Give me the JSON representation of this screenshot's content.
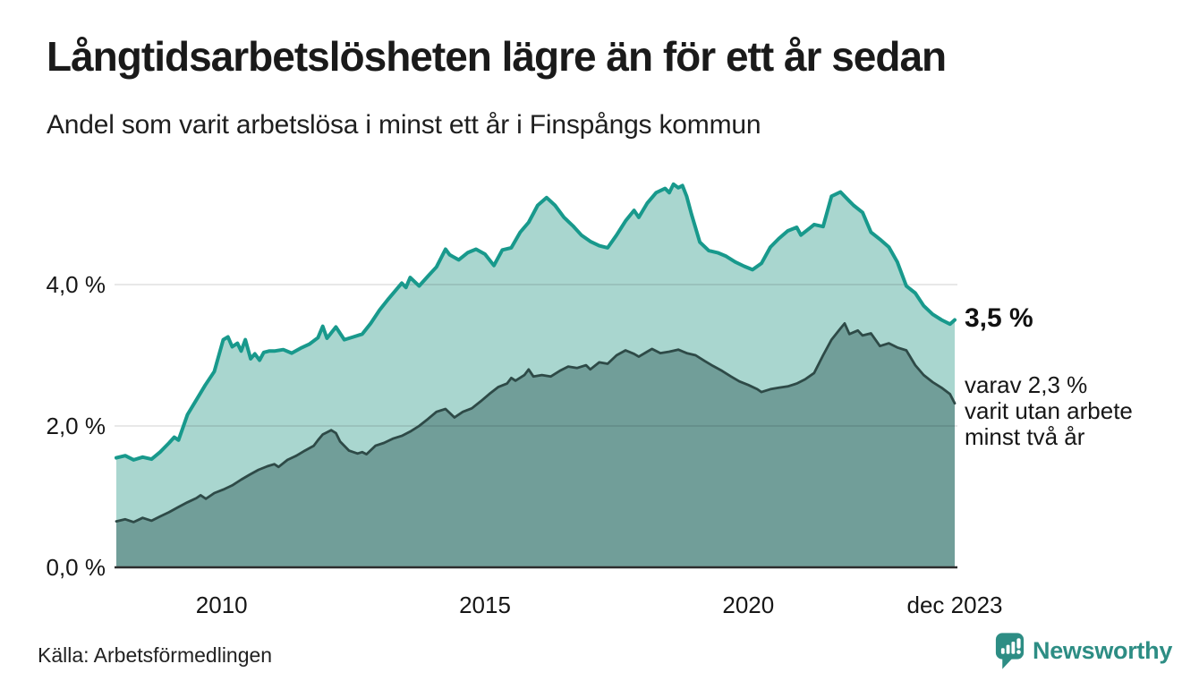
{
  "header": {
    "title": "Långtidsarbetslösheten lägre än för ett år sedan",
    "subtitle": "Andel som varit arbetslösa i minst ett år i Finspångs kommun"
  },
  "annotations": {
    "total_label": "3,5 %",
    "breakdown_line1": "varav 2,3 %",
    "breakdown_line2": "varit utan arbete",
    "breakdown_line3": "minst två år"
  },
  "footer": {
    "source": "Källa: Arbetsförmedlingen",
    "logo_text": "Newsworthy"
  },
  "colors": {
    "accent_teal": "#18998c",
    "light_fill": "#a9d6cf",
    "dark_line": "#2e4a47",
    "dark_fill": "#719e99",
    "gridline": "rgba(0,0,0,0.12)",
    "axis": "#2d2d2d",
    "logo_teal": "#2d8d84",
    "text": "#1a1a1a"
  },
  "chart_data": {
    "type": "area",
    "title": "Långtidsarbetslösheten lägre än för ett år sedan",
    "subtitle": "Andel som varit arbetslösa i minst ett år i Finspångs kommun",
    "xlabel": "",
    "ylabel": "",
    "xlim": [
      2008.0,
      2023.92
    ],
    "ylim": [
      0,
      5.5
    ],
    "grid": "horizontal",
    "legend": "none",
    "y_ticks": [
      {
        "value": 4,
        "label": "4,0 %"
      },
      {
        "value": 2,
        "label": "2,0 %"
      },
      {
        "value": 0,
        "label": "0,0 %"
      }
    ],
    "x_ticks": [
      {
        "value": 2010,
        "label": "2010"
      },
      {
        "value": 2015,
        "label": "2015"
      },
      {
        "value": 2020,
        "label": "2020"
      },
      {
        "value": 2023.92,
        "label": "dec 2023"
      }
    ],
    "series": [
      {
        "id": "at-least-one-year",
        "name": "Andel arbetslösa minst ett år",
        "end_value": 3.5,
        "end_label": "3,5 %",
        "line_color": "#18998c",
        "fill_color": "#a9d6cf",
        "points": [
          [
            2008.0,
            1.55
          ],
          [
            2008.17,
            1.58
          ],
          [
            2008.33,
            1.52
          ],
          [
            2008.5,
            1.56
          ],
          [
            2008.67,
            1.53
          ],
          [
            2008.83,
            1.63
          ],
          [
            2009.0,
            1.76
          ],
          [
            2009.1,
            1.84
          ],
          [
            2009.18,
            1.8
          ],
          [
            2009.35,
            2.16
          ],
          [
            2009.52,
            2.37
          ],
          [
            2009.69,
            2.58
          ],
          [
            2009.86,
            2.77
          ],
          [
            2010.03,
            3.22
          ],
          [
            2010.12,
            3.26
          ],
          [
            2010.2,
            3.12
          ],
          [
            2010.3,
            3.17
          ],
          [
            2010.37,
            3.06
          ],
          [
            2010.45,
            3.22
          ],
          [
            2010.55,
            2.95
          ],
          [
            2010.63,
            3.02
          ],
          [
            2010.72,
            2.93
          ],
          [
            2010.8,
            3.04
          ],
          [
            2010.9,
            3.06
          ],
          [
            2011.0,
            3.06
          ],
          [
            2011.17,
            3.08
          ],
          [
            2011.33,
            3.03
          ],
          [
            2011.5,
            3.1
          ],
          [
            2011.67,
            3.16
          ],
          [
            2011.83,
            3.25
          ],
          [
            2011.92,
            3.41
          ],
          [
            2012.0,
            3.24
          ],
          [
            2012.17,
            3.4
          ],
          [
            2012.33,
            3.22
          ],
          [
            2012.5,
            3.26
          ],
          [
            2012.67,
            3.3
          ],
          [
            2012.83,
            3.45
          ],
          [
            2013.0,
            3.64
          ],
          [
            2013.17,
            3.8
          ],
          [
            2013.33,
            3.94
          ],
          [
            2013.42,
            4.02
          ],
          [
            2013.5,
            3.96
          ],
          [
            2013.58,
            4.1
          ],
          [
            2013.75,
            3.98
          ],
          [
            2013.92,
            4.12
          ],
          [
            2014.08,
            4.25
          ],
          [
            2014.25,
            4.5
          ],
          [
            2014.33,
            4.42
          ],
          [
            2014.5,
            4.35
          ],
          [
            2014.67,
            4.45
          ],
          [
            2014.83,
            4.5
          ],
          [
            2015.0,
            4.43
          ],
          [
            2015.17,
            4.27
          ],
          [
            2015.33,
            4.49
          ],
          [
            2015.5,
            4.52
          ],
          [
            2015.67,
            4.74
          ],
          [
            2015.83,
            4.88
          ],
          [
            2016.0,
            5.12
          ],
          [
            2016.17,
            5.23
          ],
          [
            2016.33,
            5.12
          ],
          [
            2016.5,
            4.95
          ],
          [
            2016.67,
            4.83
          ],
          [
            2016.83,
            4.7
          ],
          [
            2017.0,
            4.61
          ],
          [
            2017.17,
            4.55
          ],
          [
            2017.33,
            4.52
          ],
          [
            2017.5,
            4.7
          ],
          [
            2017.67,
            4.9
          ],
          [
            2017.83,
            5.05
          ],
          [
            2017.92,
            4.95
          ],
          [
            2018.08,
            5.15
          ],
          [
            2018.25,
            5.3
          ],
          [
            2018.42,
            5.36
          ],
          [
            2018.5,
            5.3
          ],
          [
            2018.58,
            5.42
          ],
          [
            2018.67,
            5.37
          ],
          [
            2018.75,
            5.4
          ],
          [
            2018.83,
            5.25
          ],
          [
            2018.92,
            5.0
          ],
          [
            2019.08,
            4.6
          ],
          [
            2019.25,
            4.48
          ],
          [
            2019.42,
            4.45
          ],
          [
            2019.58,
            4.4
          ],
          [
            2019.75,
            4.32
          ],
          [
            2019.92,
            4.26
          ],
          [
            2020.08,
            4.21
          ],
          [
            2020.25,
            4.3
          ],
          [
            2020.42,
            4.53
          ],
          [
            2020.58,
            4.65
          ],
          [
            2020.75,
            4.76
          ],
          [
            2020.92,
            4.81
          ],
          [
            2021.0,
            4.7
          ],
          [
            2021.17,
            4.8
          ],
          [
            2021.25,
            4.85
          ],
          [
            2021.42,
            4.82
          ],
          [
            2021.58,
            5.25
          ],
          [
            2021.75,
            5.31
          ],
          [
            2021.92,
            5.18
          ],
          [
            2022.0,
            5.12
          ],
          [
            2022.17,
            5.02
          ],
          [
            2022.33,
            4.74
          ],
          [
            2022.5,
            4.64
          ],
          [
            2022.67,
            4.53
          ],
          [
            2022.83,
            4.32
          ],
          [
            2023.0,
            3.98
          ],
          [
            2023.17,
            3.88
          ],
          [
            2023.33,
            3.7
          ],
          [
            2023.5,
            3.58
          ],
          [
            2023.67,
            3.5
          ],
          [
            2023.83,
            3.44
          ],
          [
            2023.92,
            3.5
          ]
        ]
      },
      {
        "id": "at-least-two-years",
        "name": "varav utan arbete minst två år",
        "end_value": 2.3,
        "end_label": "varav 2,3 % varit utan arbete minst två år",
        "line_color": "#2e4a47",
        "fill_color": "#719e99",
        "points": [
          [
            2008.0,
            0.65
          ],
          [
            2008.17,
            0.68
          ],
          [
            2008.33,
            0.64
          ],
          [
            2008.5,
            0.7
          ],
          [
            2008.67,
            0.66
          ],
          [
            2008.83,
            0.72
          ],
          [
            2009.0,
            0.78
          ],
          [
            2009.17,
            0.85
          ],
          [
            2009.35,
            0.92
          ],
          [
            2009.52,
            0.98
          ],
          [
            2009.6,
            1.02
          ],
          [
            2009.7,
            0.97
          ],
          [
            2009.86,
            1.05
          ],
          [
            2010.03,
            1.1
          ],
          [
            2010.2,
            1.16
          ],
          [
            2010.37,
            1.24
          ],
          [
            2010.53,
            1.31
          ],
          [
            2010.7,
            1.38
          ],
          [
            2010.87,
            1.43
          ],
          [
            2011.0,
            1.46
          ],
          [
            2011.08,
            1.42
          ],
          [
            2011.25,
            1.52
          ],
          [
            2011.42,
            1.58
          ],
          [
            2011.58,
            1.65
          ],
          [
            2011.75,
            1.72
          ],
          [
            2011.83,
            1.8
          ],
          [
            2011.92,
            1.88
          ],
          [
            2012.08,
            1.94
          ],
          [
            2012.17,
            1.9
          ],
          [
            2012.25,
            1.78
          ],
          [
            2012.42,
            1.65
          ],
          [
            2012.58,
            1.61
          ],
          [
            2012.67,
            1.63
          ],
          [
            2012.75,
            1.6
          ],
          [
            2012.92,
            1.72
          ],
          [
            2013.08,
            1.76
          ],
          [
            2013.25,
            1.82
          ],
          [
            2013.42,
            1.86
          ],
          [
            2013.58,
            1.92
          ],
          [
            2013.75,
            2.0
          ],
          [
            2013.92,
            2.1
          ],
          [
            2014.08,
            2.2
          ],
          [
            2014.25,
            2.24
          ],
          [
            2014.42,
            2.12
          ],
          [
            2014.58,
            2.2
          ],
          [
            2014.75,
            2.25
          ],
          [
            2014.92,
            2.35
          ],
          [
            2015.08,
            2.45
          ],
          [
            2015.25,
            2.55
          ],
          [
            2015.42,
            2.6
          ],
          [
            2015.5,
            2.68
          ],
          [
            2015.58,
            2.64
          ],
          [
            2015.75,
            2.72
          ],
          [
            2015.83,
            2.8
          ],
          [
            2015.92,
            2.7
          ],
          [
            2016.08,
            2.72
          ],
          [
            2016.25,
            2.7
          ],
          [
            2016.42,
            2.78
          ],
          [
            2016.58,
            2.84
          ],
          [
            2016.75,
            2.82
          ],
          [
            2016.92,
            2.86
          ],
          [
            2017.0,
            2.8
          ],
          [
            2017.17,
            2.9
          ],
          [
            2017.33,
            2.88
          ],
          [
            2017.5,
            3.0
          ],
          [
            2017.67,
            3.07
          ],
          [
            2017.83,
            3.02
          ],
          [
            2017.92,
            2.98
          ],
          [
            2018.08,
            3.05
          ],
          [
            2018.17,
            3.09
          ],
          [
            2018.33,
            3.03
          ],
          [
            2018.5,
            3.05
          ],
          [
            2018.67,
            3.08
          ],
          [
            2018.83,
            3.03
          ],
          [
            2019.0,
            3.0
          ],
          [
            2019.17,
            2.92
          ],
          [
            2019.33,
            2.85
          ],
          [
            2019.5,
            2.78
          ],
          [
            2019.67,
            2.7
          ],
          [
            2019.83,
            2.63
          ],
          [
            2020.0,
            2.58
          ],
          [
            2020.17,
            2.52
          ],
          [
            2020.25,
            2.48
          ],
          [
            2020.42,
            2.52
          ],
          [
            2020.58,
            2.54
          ],
          [
            2020.75,
            2.56
          ],
          [
            2020.92,
            2.6
          ],
          [
            2021.08,
            2.66
          ],
          [
            2021.25,
            2.75
          ],
          [
            2021.42,
            3.0
          ],
          [
            2021.58,
            3.22
          ],
          [
            2021.75,
            3.38
          ],
          [
            2021.83,
            3.45
          ],
          [
            2021.92,
            3.3
          ],
          [
            2022.08,
            3.35
          ],
          [
            2022.17,
            3.28
          ],
          [
            2022.33,
            3.31
          ],
          [
            2022.5,
            3.13
          ],
          [
            2022.67,
            3.17
          ],
          [
            2022.83,
            3.11
          ],
          [
            2023.0,
            3.07
          ],
          [
            2023.17,
            2.86
          ],
          [
            2023.33,
            2.72
          ],
          [
            2023.5,
            2.62
          ],
          [
            2023.67,
            2.54
          ],
          [
            2023.83,
            2.45
          ],
          [
            2023.92,
            2.32
          ]
        ]
      }
    ]
  }
}
